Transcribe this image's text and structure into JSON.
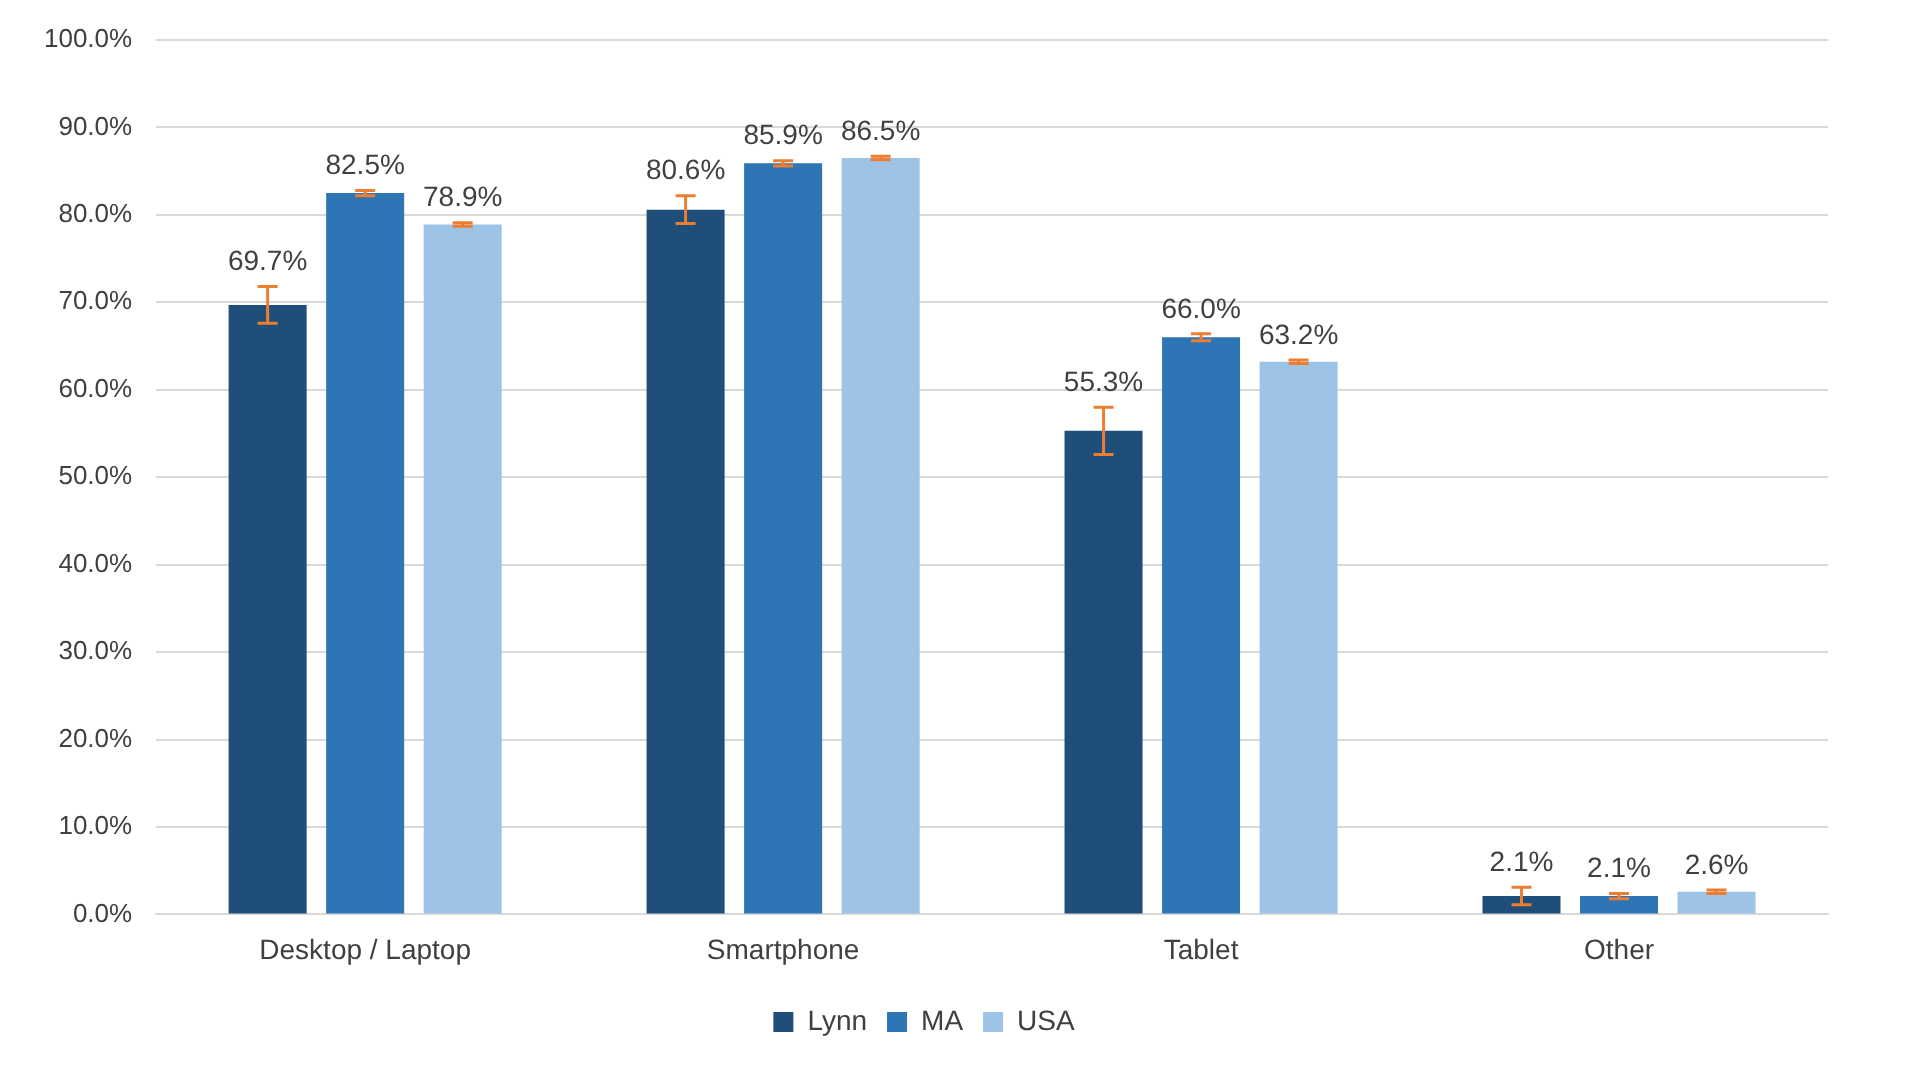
{
  "chart_data": {
    "type": "bar",
    "categories": [
      "Desktop / Laptop",
      "Smartphone",
      "Tablet",
      "Other"
    ],
    "series": [
      {
        "name": "Lynn",
        "color": "#1f4e79",
        "values": [
          69.7,
          80.6,
          55.3,
          2.1
        ],
        "errors": [
          2.1,
          1.6,
          2.7,
          1.0
        ],
        "value_labels": [
          "69.7%",
          "80.6%",
          "55.3%",
          "2.1%"
        ]
      },
      {
        "name": "MA",
        "color": "#2e75b6",
        "values": [
          82.5,
          85.9,
          66.0,
          2.1
        ],
        "errors": [
          0.3,
          0.3,
          0.4,
          0.3
        ],
        "value_labels": [
          "82.5%",
          "85.9%",
          "66.0%",
          "2.1%"
        ]
      },
      {
        "name": "USA",
        "color": "#9dc3e6",
        "values": [
          78.9,
          86.5,
          63.2,
          2.6
        ],
        "errors": [
          0.2,
          0.2,
          0.2,
          0.2
        ],
        "value_labels": [
          "78.9%",
          "86.5%",
          "63.2%",
          "2.6%"
        ]
      }
    ],
    "ylim": [
      0,
      100
    ],
    "yticks": [
      {
        "value": 0,
        "label": "0.0%"
      },
      {
        "value": 10,
        "label": "10.0%"
      },
      {
        "value": 20,
        "label": "20.0%"
      },
      {
        "value": 30,
        "label": "30.0%"
      },
      {
        "value": 40,
        "label": "40.0%"
      },
      {
        "value": 50,
        "label": "50.0%"
      },
      {
        "value": 60,
        "label": "60.0%"
      },
      {
        "value": 70,
        "label": "70.0%"
      },
      {
        "value": 80,
        "label": "80.0%"
      },
      {
        "value": 90,
        "label": "90.0%"
      },
      {
        "value": 100,
        "label": "100.0%"
      }
    ],
    "grid": "y",
    "legend": "bottom"
  }
}
